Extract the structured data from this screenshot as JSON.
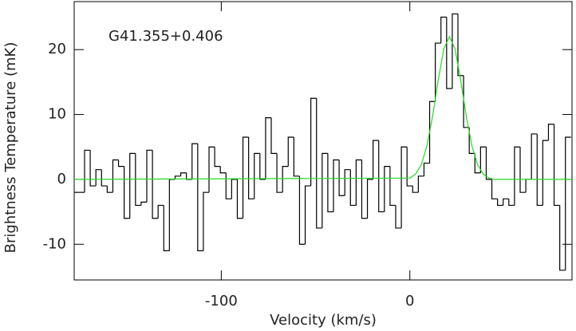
{
  "chart_data": {
    "type": "step",
    "annotation": "G41.355+0.406",
    "xlabel": "Velocity (km/s)",
    "ylabel": "Brightness Temperature (mK)",
    "xlim": [
      -178,
      86
    ],
    "ylim": [
      -15.5,
      27.4
    ],
    "xticks": [
      -100,
      0
    ],
    "yticks": [
      -10,
      0,
      10,
      20
    ],
    "series": [
      {
        "color": "#000000",
        "x": [
          -177,
          -174,
          -171,
          -168,
          -165,
          -162,
          -159,
          -156,
          -153,
          -150,
          -147,
          -144,
          -141,
          -138,
          -135,
          -132,
          -129,
          -126,
          -123,
          -120,
          -117,
          -114,
          -111,
          -108,
          -105,
          -102,
          -99,
          -96,
          -93,
          -90,
          -87,
          -84,
          -81,
          -78,
          -75,
          -72,
          -69,
          -66,
          -63,
          -60,
          -57,
          -54,
          -51,
          -48,
          -45,
          -42,
          -39,
          -36,
          -33,
          -30,
          -27,
          -24,
          -21,
          -18,
          -15,
          -12,
          -9,
          -6,
          -3,
          0,
          3,
          6,
          9,
          12,
          15,
          18,
          21,
          24,
          27,
          30,
          33,
          36,
          39,
          42,
          45,
          48,
          51,
          54,
          57,
          60,
          63,
          66,
          69,
          72,
          75,
          78,
          81,
          84
        ],
        "values": [
          -2,
          -2,
          4.5,
          -1,
          1.5,
          -1,
          -2,
          3,
          2,
          -6,
          4,
          -4,
          -3.5,
          4.5,
          -6,
          -4,
          -11,
          0,
          0.5,
          1,
          0,
          5.5,
          -11,
          -2,
          5,
          2,
          1,
          -3,
          0,
          -6,
          6.5,
          -3,
          4,
          0,
          9.5,
          4,
          -2,
          2,
          6.5,
          0.5,
          -10,
          -1,
          12.5,
          -7.5,
          4,
          -5,
          3,
          -2.5,
          1.5,
          -4,
          3,
          -6,
          0,
          6,
          -5,
          2,
          -4,
          -7.5,
          5,
          -1,
          -2,
          0.5,
          2.5,
          12,
          21,
          25,
          14,
          25.5,
          16,
          8,
          4,
          1,
          5,
          0,
          -3,
          -4,
          -3,
          -4,
          5,
          -2,
          0,
          7,
          -4,
          6,
          8.5,
          -4,
          -14,
          6.5
        ]
      },
      {
        "type": "line",
        "color": "#22dd22",
        "x": [
          -178,
          0,
          3,
          6,
          9,
          12,
          15,
          18,
          21,
          24,
          27,
          30,
          33,
          36,
          39,
          42,
          45,
          86
        ],
        "values": [
          0,
          0.2,
          0.8,
          2.2,
          5.1,
          9.6,
          15.2,
          20.1,
          22,
          20.1,
          15.2,
          9.6,
          5.1,
          2.2,
          0.8,
          0.2,
          0,
          0
        ]
      }
    ]
  }
}
